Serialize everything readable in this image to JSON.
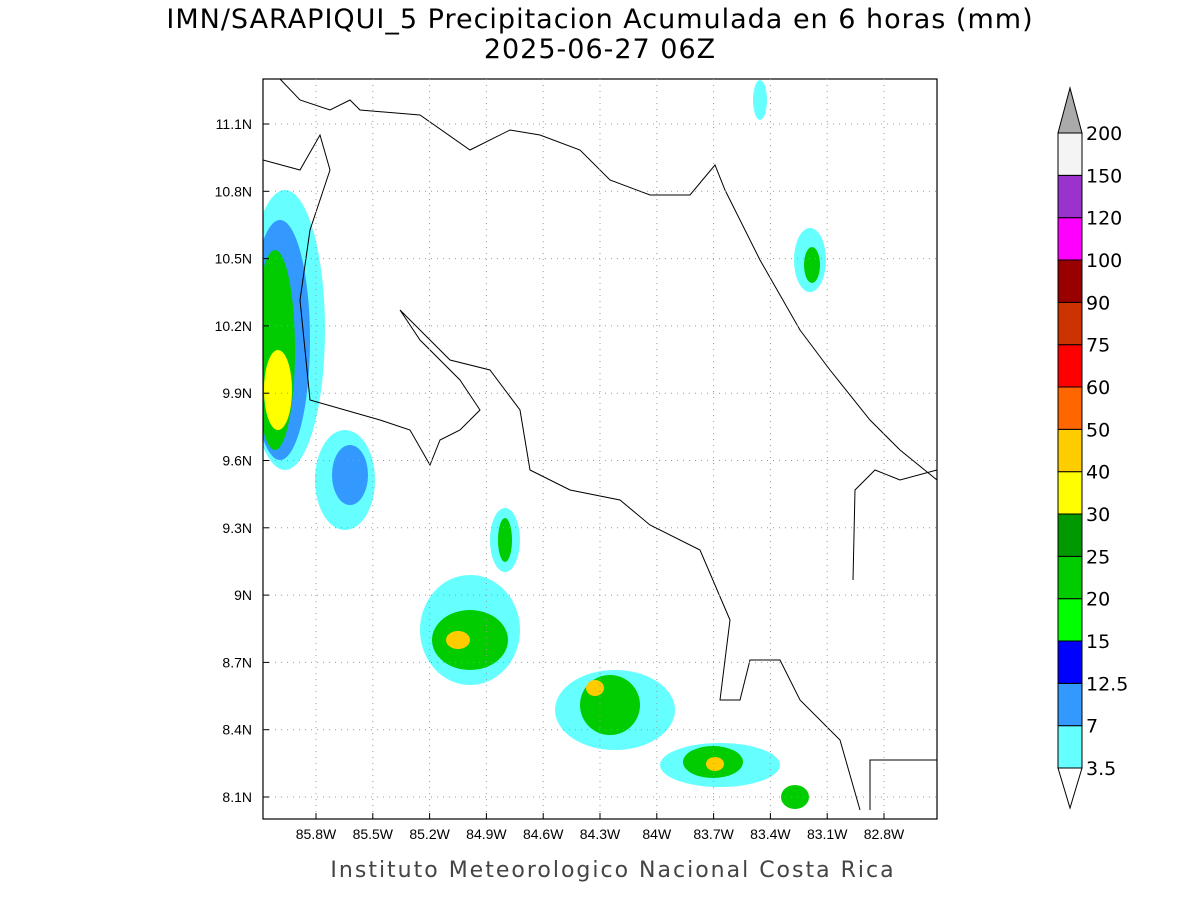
{
  "map": {
    "title": "IMN/SARAPIQUI_5 Precipitacion Acumulada en 6 horas (mm)",
    "subtitle": "2025-06-27 06Z",
    "lon_labels": [
      "85.8W",
      "85.5W",
      "85.2W",
      "84.9W",
      "84.6W",
      "84.3W",
      "84W",
      "83.7W",
      "83.4W",
      "83.1W",
      "82.8W"
    ],
    "lat_labels": [
      "11.1N",
      "10.8N",
      "10.5N",
      "10.2N",
      "9.9N",
      "9.6N",
      "9.3N",
      "9N",
      "8.7N",
      "8.4N",
      "8.1N"
    ],
    "legend": {
      "levels": [
        "3.5",
        "7",
        "12.5",
        "15",
        "20",
        "25",
        "30",
        "40",
        "50",
        "60",
        "75",
        "90",
        "100",
        "120",
        "150",
        "200"
      ],
      "colors": [
        "#66ffff",
        "#3399ff",
        "#0000ff",
        "#00ff00",
        "#00cc00",
        "#009900",
        "#ffff00",
        "#ffcc00",
        "#ff6600",
        "#ff0000",
        "#cc3300",
        "#990000",
        "#ff00ff",
        "#9933cc",
        "#f4f4f4"
      ],
      "below_color": "#ffffff",
      "above_color": "#aaaaaa"
    },
    "credit": "Instituto Meteorologico Nacional Costa Rica"
  }
}
